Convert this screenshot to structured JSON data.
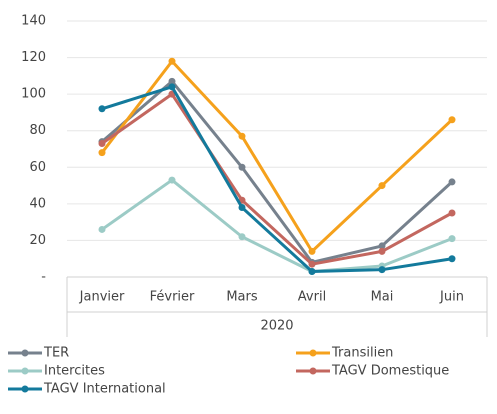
{
  "chart_data": {
    "type": "line",
    "categories": [
      "Janvier",
      "Février",
      "Mars",
      "Avril",
      "Mai",
      "Juin"
    ],
    "group_label": "2020",
    "series": [
      {
        "name": "TER",
        "color": "#76818d",
        "values": [
          74,
          107,
          60,
          8,
          17,
          52
        ]
      },
      {
        "name": "Transilien",
        "color": "#f5a11c",
        "values": [
          68,
          118,
          77,
          14,
          50,
          86
        ]
      },
      {
        "name": "Intercites",
        "color": "#9ccbc6",
        "values": [
          26,
          53,
          22,
          3,
          6,
          21
        ]
      },
      {
        "name": "TAGV Domestique",
        "color": "#c3675f",
        "values": [
          73,
          100,
          42,
          7,
          14,
          35
        ]
      },
      {
        "name": "TAGV International",
        "color": "#137a9c",
        "values": [
          92,
          104,
          38,
          3,
          4,
          10
        ]
      }
    ],
    "ylim": [
      0,
      140
    ],
    "yticks": [
      {
        "value": 0,
        "label": "-"
      },
      20,
      40,
      60,
      80,
      100,
      120,
      140
    ],
    "grid": true,
    "legend": "bottom"
  }
}
